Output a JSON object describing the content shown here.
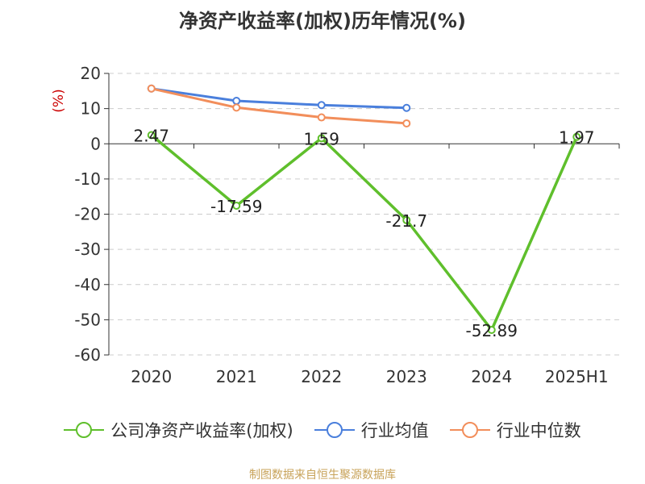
{
  "chart_data": {
    "type": "line",
    "title": "净资产收益率(加权)历年情况(%)",
    "ylabel": "(%)",
    "categories": [
      "2020",
      "2021",
      "2022",
      "2023",
      "2024",
      "2025H1"
    ],
    "ylim": [
      -60,
      20
    ],
    "yticks": [
      20,
      10,
      0,
      -10,
      -20,
      -30,
      -40,
      -50,
      -60
    ],
    "grid": true,
    "legend_position": "bottom",
    "series": [
      {
        "name": "公司净资产收益率(加权)",
        "color": "#5fbf2c",
        "values": [
          2.47,
          -17.59,
          1.59,
          -21.7,
          -52.89,
          1.97
        ],
        "labels": [
          "2.47",
          "-17.59",
          "1.59",
          "-21.7",
          "-52.89",
          "1.97"
        ]
      },
      {
        "name": "行业均值",
        "color": "#4a7fdc",
        "values": [
          15.7,
          12.2,
          11.0,
          10.2,
          null,
          null
        ]
      },
      {
        "name": "行业中位数",
        "color": "#f28e5b",
        "values": [
          15.7,
          10.3,
          7.5,
          5.8,
          null,
          null
        ]
      }
    ]
  },
  "source": "制图数据来自恒生聚源数据库"
}
